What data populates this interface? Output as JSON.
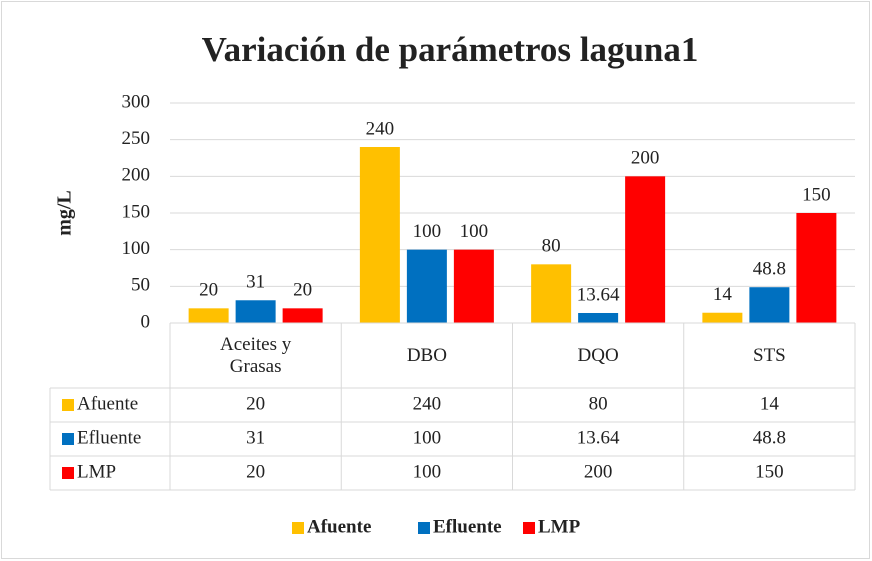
{
  "chart_data": {
    "type": "bar",
    "title": "Variación de parámetros laguna1",
    "y_label": "mg/L",
    "categories": [
      "Aceites y Grasas",
      "DBO",
      "DQO",
      "STS"
    ],
    "series": [
      {
        "name": "Afuente",
        "color": "#ffc000",
        "values": [
          20,
          240,
          80,
          14
        ]
      },
      {
        "name": "Efluente",
        "color": "#0070c0",
        "values": [
          31,
          100,
          13.64,
          48.8
        ]
      },
      {
        "name": "LMP",
        "color": "#ff0000",
        "values": [
          20,
          100,
          200,
          150
        ]
      }
    ],
    "ylim": [
      0,
      300
    ],
    "yticks": [
      0,
      50,
      100,
      150,
      200,
      250,
      300
    ],
    "grid": true,
    "legend": "bottom",
    "data_table": true
  }
}
